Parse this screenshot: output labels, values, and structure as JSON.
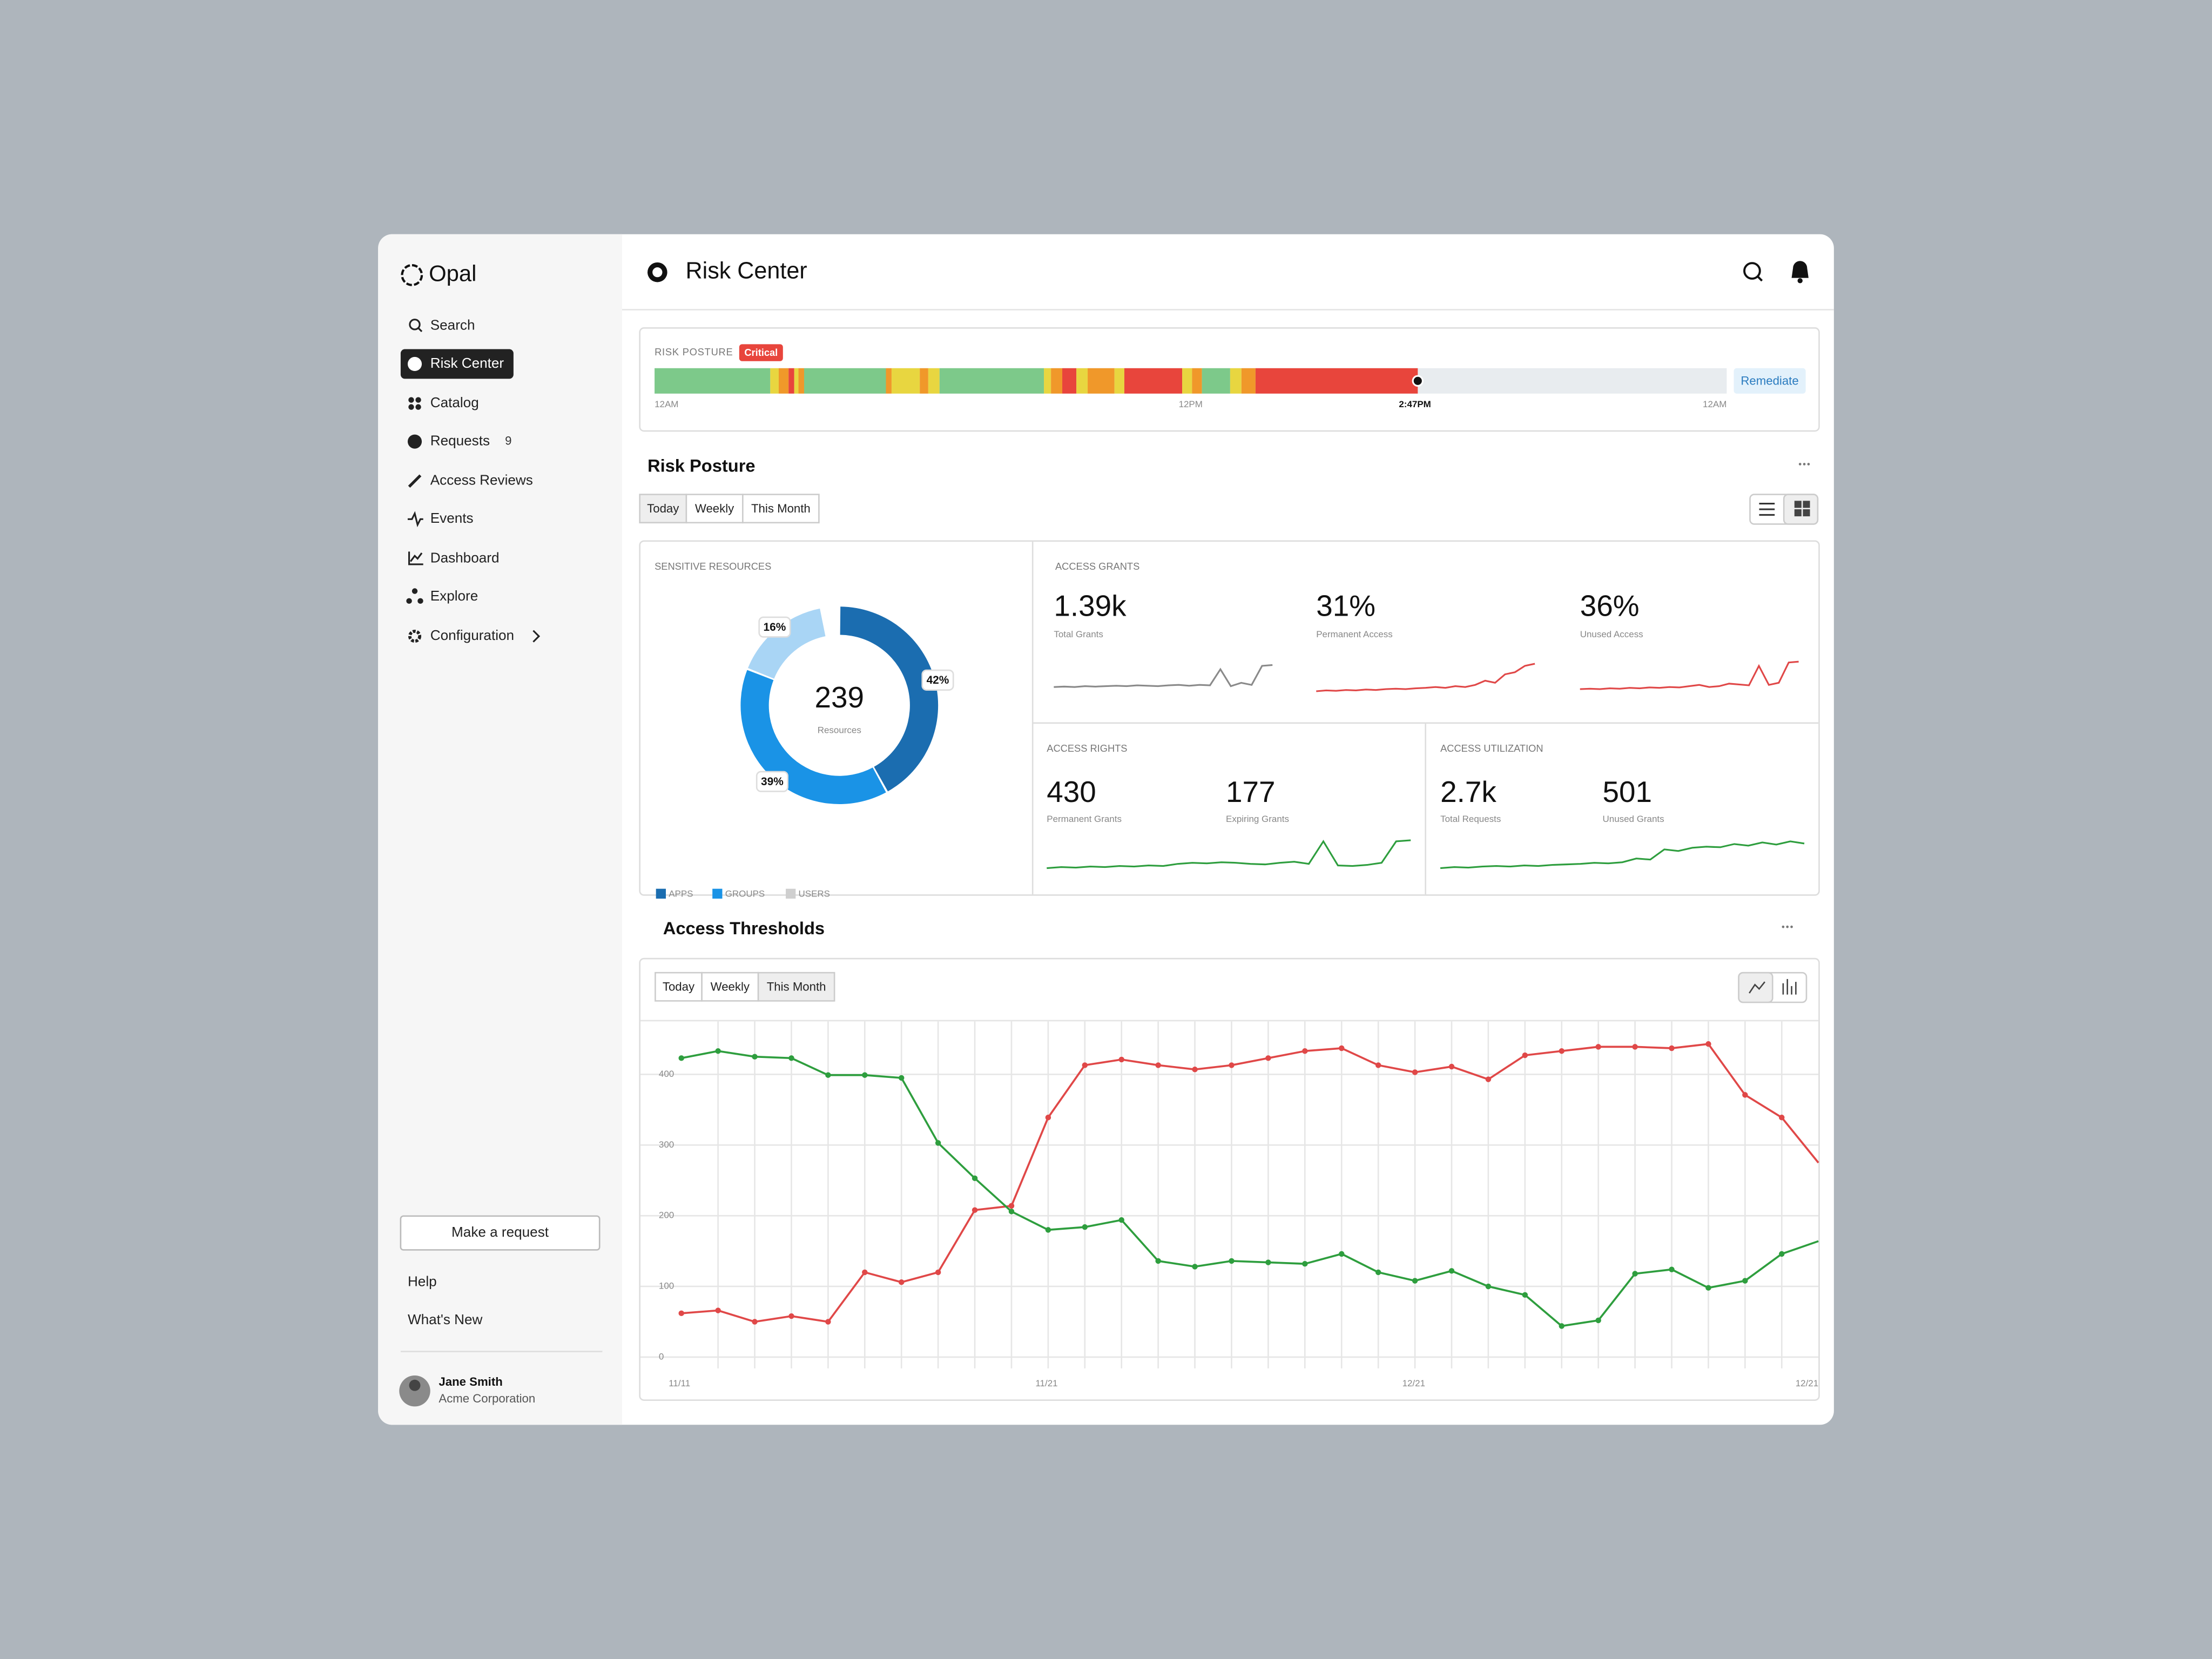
{
  "sidebar": {
    "logo": "Opal",
    "nav": [
      "Search",
      "Risk Center",
      "Catalog",
      "Requests",
      "Access Reviews",
      "Events",
      "Dashboard",
      "Explore",
      "Configuration"
    ],
    "active": 1,
    "requests_badge": 9,
    "make_request": "Make a request",
    "links": [
      "Help",
      "What's New"
    ],
    "user": {
      "name": "Jane Smith",
      "org": "Acme Corporation"
    }
  },
  "header": {
    "title": "Risk Center"
  },
  "risk_bar": {
    "label": "RISK POSTURE",
    "status": "Critical",
    "times": [
      "12AM",
      "12PM",
      "2:47PM",
      "12AM"
    ],
    "action": "Remediate"
  },
  "risk_posture": {
    "title": "Risk Posture",
    "filters": [
      "Today",
      "Weekly",
      "This Month"
    ],
    "active": 0
  },
  "stats": [
    {
      "title": "ACCESS GRANTS",
      "metrics": [
        {
          "value": "1.39k",
          "label": "Total Grants",
          "sparkline": {
            "color": "#8a8a8a",
            "ylim": [
              0,
              100
            ],
            "values": [
              20,
              21,
              20,
              22,
              21,
              22,
              23,
              22,
              24,
              23,
              22,
              24,
              25,
              23,
              25,
              24,
              62,
              22,
              30,
              25,
              70,
              72
            ]
          }
        },
        {
          "value": "31%",
          "label": "Permanent Access",
          "sparkline": {
            "color": "#e04848",
            "ylim": [
              0,
              100
            ],
            "values": [
              10,
              12,
              11,
              13,
              12,
              14,
              13,
              15,
              16,
              15,
              17,
              18,
              20,
              18,
              22,
              20,
              25,
              35,
              30,
              50,
              55,
              70,
              75
            ]
          }
        },
        {
          "value": "36%",
          "label": "Unused Access",
          "sparkline": {
            "color": "#e04848",
            "ylim": [
              0,
              100
            ],
            "values": [
              15,
              16,
              15,
              17,
              16,
              18,
              17,
              19,
              18,
              20,
              19,
              22,
              25,
              20,
              22,
              28,
              26,
              24,
              70,
              25,
              30,
              78,
              80
            ]
          }
        }
      ]
    },
    {
      "title": "ACCESS RIGHTS",
      "metrics": [
        {
          "value": "430",
          "label": "Permanent Grants"
        },
        {
          "value": "177",
          "label": "Expiring Grants"
        }
      ],
      "sparkline": {
        "color": "#2e9e3e",
        "ylim": [
          0,
          100
        ],
        "values": [
          20,
          22,
          21,
          23,
          22,
          24,
          23,
          25,
          24,
          28,
          30,
          29,
          31,
          30,
          28,
          27,
          30,
          32,
          28,
          70,
          25,
          24,
          26,
          30,
          70,
          72
        ]
      }
    },
    {
      "title": "ACCESS UTILIZATION",
      "metrics": [
        {
          "value": "2.7k",
          "label": "Total Requests"
        },
        {
          "value": "501",
          "label": "Unused Grants"
        }
      ],
      "sparkline": {
        "color": "#2e9e3e",
        "ylim": [
          0,
          100
        ],
        "values": [
          20,
          22,
          21,
          23,
          24,
          23,
          25,
          24,
          26,
          27,
          28,
          30,
          29,
          31,
          38,
          36,
          55,
          52,
          58,
          60,
          59,
          65,
          62,
          68,
          64,
          70,
          66
        ]
      }
    }
  ],
  "chart_data": [
    {
      "type": "donut",
      "title": "SENSITIVE RESOURCES",
      "total": 239,
      "total_label": "Resources",
      "categories": [
        "APPS",
        "GROUPS",
        "USERS"
      ],
      "values": [
        42,
        39,
        16
      ],
      "value_labels": [
        "42%",
        "39%",
        "16%"
      ],
      "colors": [
        "#1b6db0",
        "#1a93e6",
        "#a9d5f5"
      ],
      "legend_colors": [
        "#1b6db0",
        "#1a93e6",
        "#cfcfcf"
      ]
    },
    {
      "type": "line",
      "title": "Access Thresholds",
      "filters": [
        "Today",
        "Weekly",
        "This Month"
      ],
      "active": 2,
      "categories": [
        "11/11",
        null,
        null,
        null,
        null,
        null,
        null,
        null,
        null,
        null,
        "11/21",
        null,
        null,
        null,
        null,
        null,
        null,
        null,
        null,
        null,
        "12/21",
        null,
        null,
        null,
        null,
        null,
        null,
        null,
        null,
        null,
        null,
        "12/21"
      ],
      "series": [
        {
          "color": "#e04848",
          "values": [
            62,
            66,
            50,
            58,
            50,
            120,
            106,
            120,
            208,
            214,
            339,
            413,
            421,
            413,
            407,
            413,
            423,
            433,
            437,
            413,
            403,
            411,
            393,
            427,
            433,
            439,
            439,
            437,
            443,
            371,
            339,
            275
          ]
        },
        {
          "color": "#2e9e3e",
          "values": [
            423,
            433,
            425,
            423,
            399,
            399,
            395,
            303,
            253,
            206,
            180,
            184,
            194,
            136,
            128,
            136,
            134,
            132,
            146,
            120,
            108,
            122,
            100,
            88,
            44,
            52,
            118,
            124,
            98,
            108,
            146,
            164
          ]
        }
      ],
      "ylim": [
        0,
        475
      ],
      "yticks": [
        0,
        100,
        200,
        300,
        400
      ],
      "grid": true
    }
  ]
}
